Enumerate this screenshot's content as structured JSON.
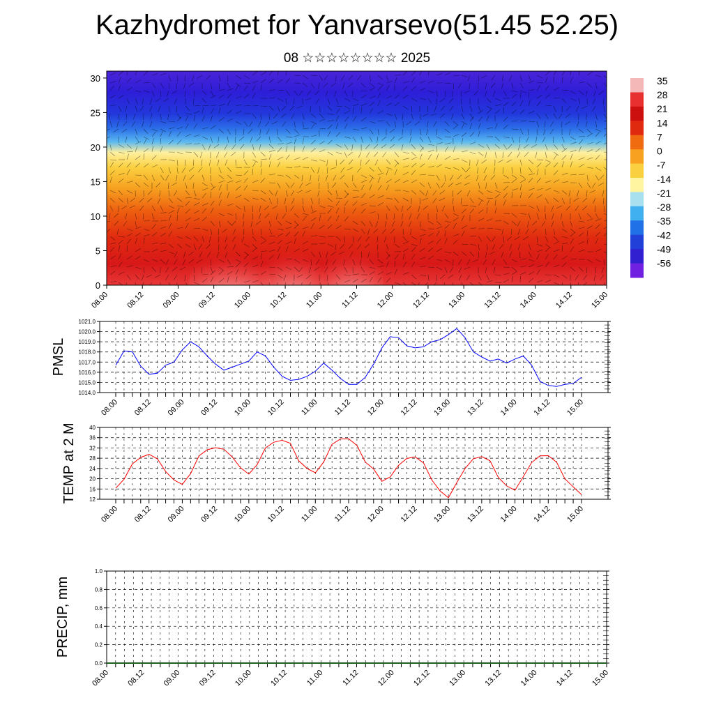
{
  "title": "Kazhydromet for Yanvarsevo(51.45 52.25)",
  "subtitle": "08 ☆☆☆☆☆☆☆☆ 2025",
  "colors": {
    "pmsl_line": "#0000ff",
    "temp_line": "#ff0000",
    "precip_line": "#1f5f1f",
    "grid": "#000000"
  },
  "chart_data": [
    {
      "type": "heatmap",
      "name": "vertical-cross-section",
      "x_tick_labels": [
        "08.00",
        "08.12",
        "09.00",
        "09.12",
        "10.00",
        "10.12",
        "11.00",
        "11.12",
        "12.00",
        "12.12",
        "13.00",
        "13.12",
        "14.00",
        "14.12",
        "15.00"
      ],
      "y_ticks": [
        0,
        5,
        10,
        15,
        20,
        25,
        30
      ],
      "ylim": [
        0,
        31
      ],
      "colorbar_labels": [
        "35",
        "28",
        "21",
        "14",
        "7",
        "0",
        "-7",
        "-14",
        "-21",
        "-28",
        "-35",
        "-42",
        "-49",
        "-56"
      ],
      "colorbar_colors": [
        "#f4b8b8",
        "#e83030",
        "#cc1010",
        "#e02a10",
        "#f06a10",
        "#f8a020",
        "#fbd040",
        "#fff4a0",
        "#a8e0f0",
        "#40b0f0",
        "#2070e8",
        "#2040d8",
        "#3020d0",
        "#7020e0"
      ],
      "overlay": "wind barbs"
    },
    {
      "type": "line",
      "name": "pmsl",
      "ylabel": "PMSL",
      "x_tick_labels": [
        "08.00",
        "08.12",
        "09.00",
        "09.12",
        "10.00",
        "10.12",
        "11.00",
        "11.12",
        "12.00",
        "12.12",
        "13.00",
        "13.12",
        "14.00",
        "14.12",
        "15.00"
      ],
      "y_tick_labels": [
        "1014.0",
        "1015.0",
        "1016.0",
        "1017.0",
        "1018.0",
        "1019.0",
        "1020.0",
        "1021.0"
      ],
      "ylim": [
        1014,
        1021
      ],
      "step_hours": 3,
      "values": [
        1016.7,
        1018.1,
        1018.0,
        1016.6,
        1015.8,
        1015.9,
        1016.7,
        1017.0,
        1018.2,
        1019.0,
        1018.5,
        1017.6,
        1016.8,
        1016.2,
        1016.5,
        1016.8,
        1017.1,
        1018.0,
        1017.6,
        1016.5,
        1015.6,
        1015.2,
        1015.3,
        1015.6,
        1016.1,
        1016.9,
        1016.2,
        1015.4,
        1014.8,
        1014.8,
        1015.5,
        1016.8,
        1018.4,
        1019.5,
        1019.4,
        1018.6,
        1018.4,
        1018.5,
        1019.0,
        1019.2,
        1019.7,
        1020.3,
        1019.4,
        1018.0,
        1017.5,
        1017.1,
        1017.3,
        1016.9,
        1017.3,
        1017.6,
        1016.7,
        1015.1,
        1014.7,
        1014.6,
        1014.8,
        1014.9,
        1015.5
      ]
    },
    {
      "type": "line",
      "name": "temp",
      "ylabel": "TEMP at 2 M",
      "x_tick_labels": [
        "08.00",
        "08.12",
        "09.00",
        "09.12",
        "10.00",
        "10.12",
        "11.00",
        "11.12",
        "12.00",
        "12.12",
        "13.00",
        "13.12",
        "14.00",
        "14.12",
        "15.00"
      ],
      "y_tick_labels": [
        "12",
        "16",
        "20",
        "24",
        "28",
        "32",
        "36",
        "40"
      ],
      "ylim": [
        12,
        40
      ],
      "step_hours": 3,
      "values": [
        16.3,
        19.8,
        25.8,
        28.3,
        29.5,
        27.8,
        22.8,
        19.5,
        17.8,
        22.0,
        28.9,
        31.3,
        32.1,
        31.5,
        28.5,
        24.3,
        21.8,
        25.5,
        32.0,
        34.2,
        35.0,
        33.8,
        27.0,
        24.0,
        22.3,
        26.5,
        33.4,
        35.5,
        35.6,
        33.0,
        26.5,
        23.8,
        19.0,
        20.7,
        25.2,
        27.9,
        28.5,
        26.2,
        19.5,
        15.2,
        12.6,
        18.5,
        24.0,
        27.8,
        28.6,
        27.0,
        20.5,
        17.2,
        15.5,
        20.8,
        26.3,
        28.9,
        29.0,
        26.5,
        20.0,
        16.8,
        13.8
      ]
    },
    {
      "type": "line",
      "name": "precip",
      "ylabel": "PRECIP, mm",
      "x_tick_labels": [
        "08.00",
        "08.12",
        "09.00",
        "09.12",
        "10.00",
        "10.12",
        "11.00",
        "11.12",
        "12.00",
        "12.12",
        "13.00",
        "13.12",
        "14.00",
        "14.12",
        "15.00"
      ],
      "y_tick_labels": [
        "0.0",
        "0.2",
        "0.4",
        "0.6",
        "0.8",
        "1.0"
      ],
      "ylim": [
        0,
        1
      ],
      "step_hours": 3,
      "values": [
        0,
        0,
        0,
        0,
        0,
        0,
        0,
        0,
        0,
        0,
        0,
        0,
        0,
        0,
        0,
        0,
        0,
        0,
        0,
        0,
        0,
        0,
        0,
        0,
        0,
        0,
        0,
        0,
        0,
        0,
        0,
        0,
        0,
        0,
        0,
        0,
        0,
        0,
        0,
        0,
        0,
        0,
        0,
        0,
        0,
        0,
        0,
        0,
        0,
        0,
        0,
        0,
        0,
        0,
        0,
        0,
        0
      ]
    }
  ]
}
